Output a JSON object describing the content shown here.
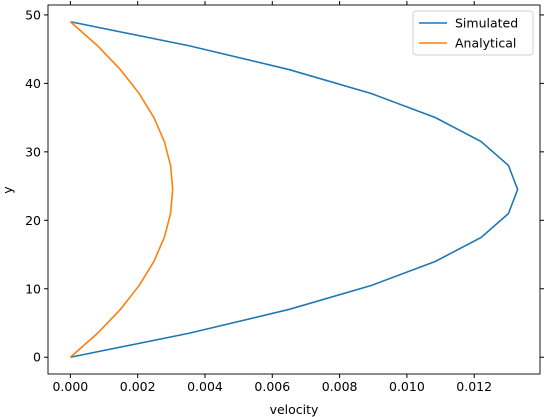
{
  "chart_data": {
    "type": "line",
    "xlabel": "velocity",
    "ylabel": "y",
    "y": [
      0,
      3.5,
      7,
      10.5,
      14,
      17.5,
      21,
      24.5,
      28,
      31.5,
      35,
      38.5,
      42,
      45.5,
      49
    ],
    "series": [
      {
        "name": "Simulated",
        "color": "#1f77b4",
        "values": [
          0,
          0.003526,
          0.006509,
          0.008951,
          0.010849,
          0.012205,
          0.013019,
          0.01329,
          0.013019,
          0.012205,
          0.010849,
          0.008951,
          0.006509,
          0.003526,
          0
        ]
      },
      {
        "name": "Analytical",
        "color": "#ff7f0e",
        "values": [
          0,
          0.000807,
          0.001489,
          0.002047,
          0.002482,
          0.002792,
          0.002978,
          0.00304,
          0.002978,
          0.002792,
          0.002482,
          0.002047,
          0.001489,
          0.000807,
          0
        ]
      }
    ],
    "xlim": [
      -0.000665,
      0.013955
    ],
    "xticks": [
      {
        "value": 0,
        "label": "0.000"
      },
      {
        "value": 0.002,
        "label": "0.002"
      },
      {
        "value": 0.004,
        "label": "0.004"
      },
      {
        "value": 0.006,
        "label": "0.006"
      },
      {
        "value": 0.008,
        "label": "0.008"
      },
      {
        "value": 0.01,
        "label": "0.010"
      },
      {
        "value": 0.012,
        "label": "0.012"
      }
    ],
    "ylim": [
      -2.45,
      51.45
    ],
    "yticks": [
      0,
      10,
      20,
      30,
      40,
      50
    ],
    "legend": "upper right"
  }
}
